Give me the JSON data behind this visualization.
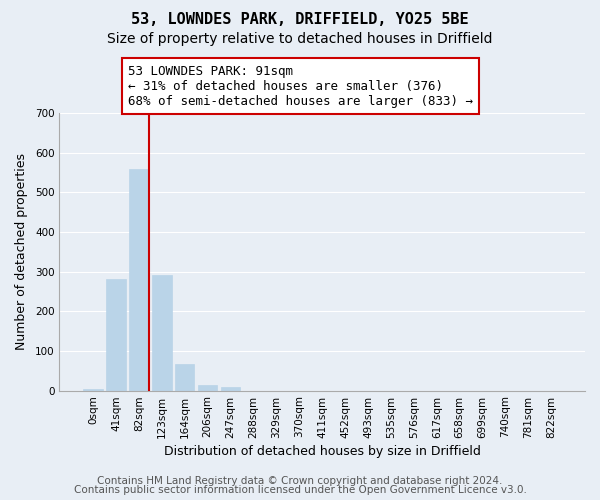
{
  "title": "53, LOWNDES PARK, DRIFFIELD, YO25 5BE",
  "subtitle": "Size of property relative to detached houses in Driffield",
  "xlabel": "Distribution of detached houses by size in Driffield",
  "ylabel": "Number of detached properties",
  "bar_labels": [
    "0sqm",
    "41sqm",
    "82sqm",
    "123sqm",
    "164sqm",
    "206sqm",
    "247sqm",
    "288sqm",
    "329sqm",
    "370sqm",
    "411sqm",
    "452sqm",
    "493sqm",
    "535sqm",
    "576sqm",
    "617sqm",
    "658sqm",
    "699sqm",
    "740sqm",
    "781sqm",
    "822sqm"
  ],
  "bar_values": [
    5,
    282,
    560,
    291,
    68,
    14,
    8,
    0,
    0,
    0,
    0,
    0,
    0,
    0,
    0,
    0,
    0,
    0,
    0,
    0,
    0
  ],
  "bar_color": "#bad4e8",
  "bar_edge_color": "#bad4e8",
  "vline_color": "#cc0000",
  "annotation_text": "53 LOWNDES PARK: 91sqm\n← 31% of detached houses are smaller (376)\n68% of semi-detached houses are larger (833) →",
  "annotation_box_color": "#ffffff",
  "annotation_box_edge": "#cc0000",
  "ylim": [
    0,
    700
  ],
  "yticks": [
    0,
    100,
    200,
    300,
    400,
    500,
    600,
    700
  ],
  "footer1": "Contains HM Land Registry data © Crown copyright and database right 2024.",
  "footer2": "Contains public sector information licensed under the Open Government Licence v3.0.",
  "bg_color": "#e8eef5",
  "grid_color": "#ffffff",
  "title_fontsize": 11,
  "subtitle_fontsize": 10,
  "axis_label_fontsize": 9,
  "tick_fontsize": 7.5,
  "annotation_fontsize": 9,
  "footer_fontsize": 7.5
}
